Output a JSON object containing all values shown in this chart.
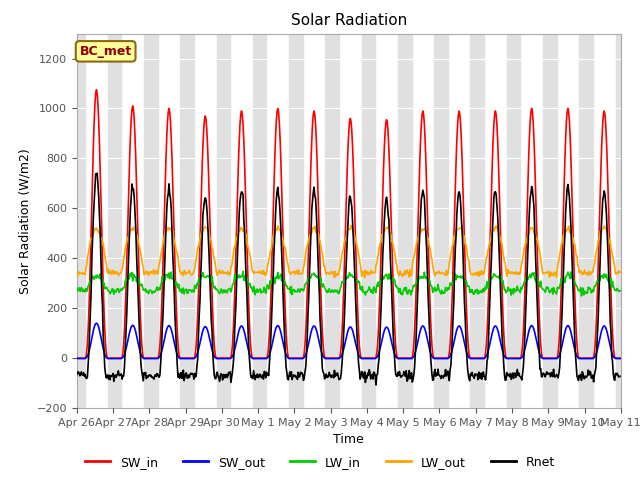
{
  "title": "Solar Radiation",
  "xlabel": "Time",
  "ylabel": "Solar Radiation (W/m2)",
  "ylim": [
    -200,
    1300
  ],
  "yticks": [
    -200,
    0,
    200,
    400,
    600,
    800,
    1000,
    1200
  ],
  "annotation": "BC_met",
  "annotation_color": "#8B0000",
  "annotation_bg": "#FFFF99",
  "annotation_border": "#8B6914",
  "colors": {
    "SW_in": "#FF0000",
    "SW_out": "#0000FF",
    "LW_in": "#00CC00",
    "LW_out": "#FFA500",
    "Rnet": "#000000"
  },
  "n_days": 15,
  "dt_minutes": 30,
  "lw": 1.2,
  "sw_in_peaks": [
    1075,
    1010,
    1000,
    970,
    990,
    1000,
    990,
    960,
    955,
    990,
    990,
    990,
    1000,
    1000,
    990
  ],
  "day_start": 5.5,
  "day_end": 20.5,
  "night_color": "#E0E0E0",
  "plot_bg": "#FFFFFF",
  "grid_color": "#D3D3D3"
}
